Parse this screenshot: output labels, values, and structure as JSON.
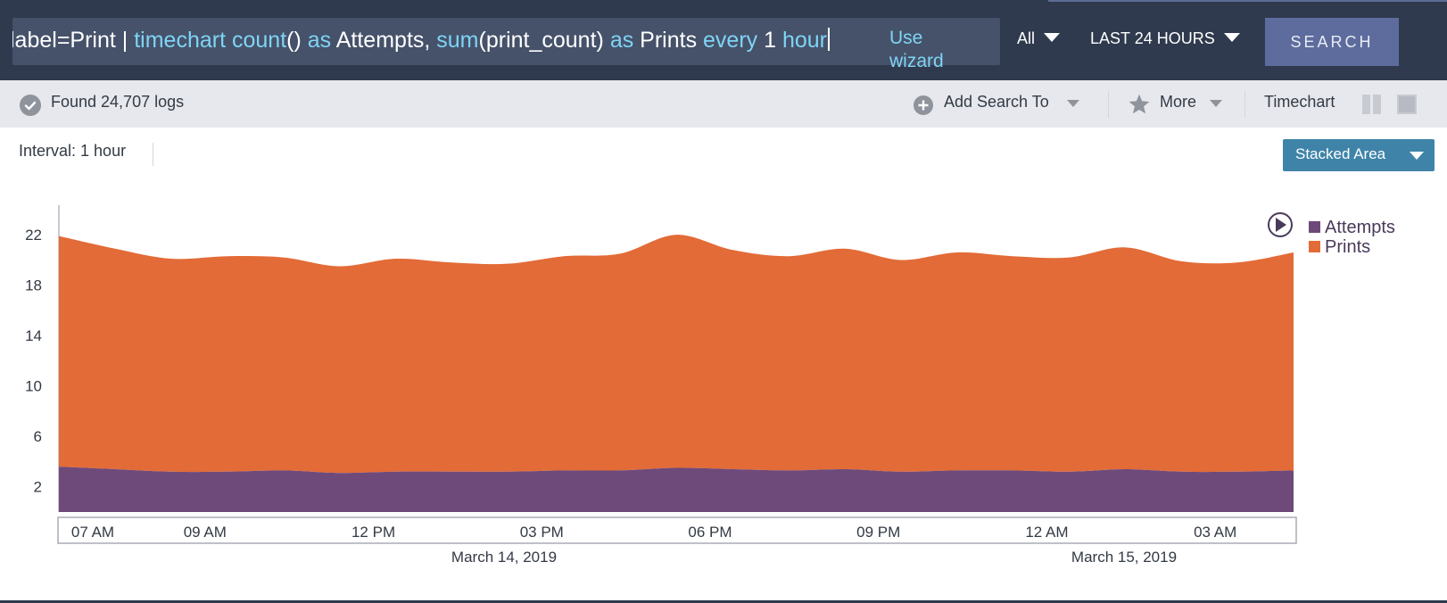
{
  "search": {
    "query_prefix": "label=Print | ",
    "q_timechart": "timechart",
    "q_count": "count",
    "q_paren1": "() ",
    "q_as1": "as",
    "q_attempts": " Attempts, ",
    "q_sum": "sum",
    "q_print_count": "(print_count) ",
    "q_as2": "as",
    "q_prints": " Prints ",
    "q_every": "every",
    "q_one": " 1 ",
    "q_hour": "hour",
    "wizard_label": "Use wizard",
    "scope": "All",
    "time_range": "LAST 24 HOURS",
    "search_button": "SEARCH"
  },
  "toolbar": {
    "found": "Found 24,707 logs",
    "add_search_to": "Add Search To",
    "more": "More",
    "timechart": "Timechart"
  },
  "interval": "Interval: 1 hour",
  "chart_type_button": "Stacked Area",
  "colors": {
    "attempts": "#6e4a7a",
    "prints": "#e36b37",
    "topbar": "#2f3a4e"
  },
  "chart_data": {
    "type": "area",
    "stacked": true,
    "x": [
      "07 AM",
      "08 AM",
      "09 AM",
      "10 AM",
      "11 AM",
      "12 PM",
      "01 PM",
      "02 PM",
      "03 PM",
      "04 PM",
      "05 PM",
      "06 PM",
      "07 PM",
      "08 PM",
      "09 PM",
      "10 PM",
      "11 PM",
      "12 AM",
      "01 AM",
      "02 AM",
      "03 AM",
      "04 AM",
      "05 AM"
    ],
    "x_tick_labels": [
      "07 AM",
      "09 AM",
      "12 PM",
      "03 PM",
      "06 PM",
      "09 PM",
      "12 AM",
      "03 AM"
    ],
    "date_labels": [
      "March 14, 2019",
      "March 15, 2019"
    ],
    "y_ticks": [
      2,
      6,
      10,
      14,
      18,
      22
    ],
    "ylim": [
      0,
      23.5
    ],
    "legend_position": "top-right",
    "series": [
      {
        "name": "Attempts",
        "values": [
          3.6,
          3.4,
          3.2,
          3.2,
          3.3,
          3.1,
          3.2,
          3.2,
          3.2,
          3.3,
          3.3,
          3.5,
          3.4,
          3.3,
          3.4,
          3.2,
          3.3,
          3.3,
          3.2,
          3.4,
          3.2,
          3.2,
          3.3
        ]
      },
      {
        "name": "Prints",
        "values": [
          18.3,
          17.5,
          16.9,
          17.1,
          16.9,
          16.4,
          16.9,
          16.6,
          16.5,
          17.0,
          17.2,
          18.5,
          17.4,
          17.0,
          17.5,
          16.8,
          17.3,
          17.0,
          17.0,
          17.6,
          16.7,
          16.6,
          17.3
        ]
      }
    ]
  }
}
